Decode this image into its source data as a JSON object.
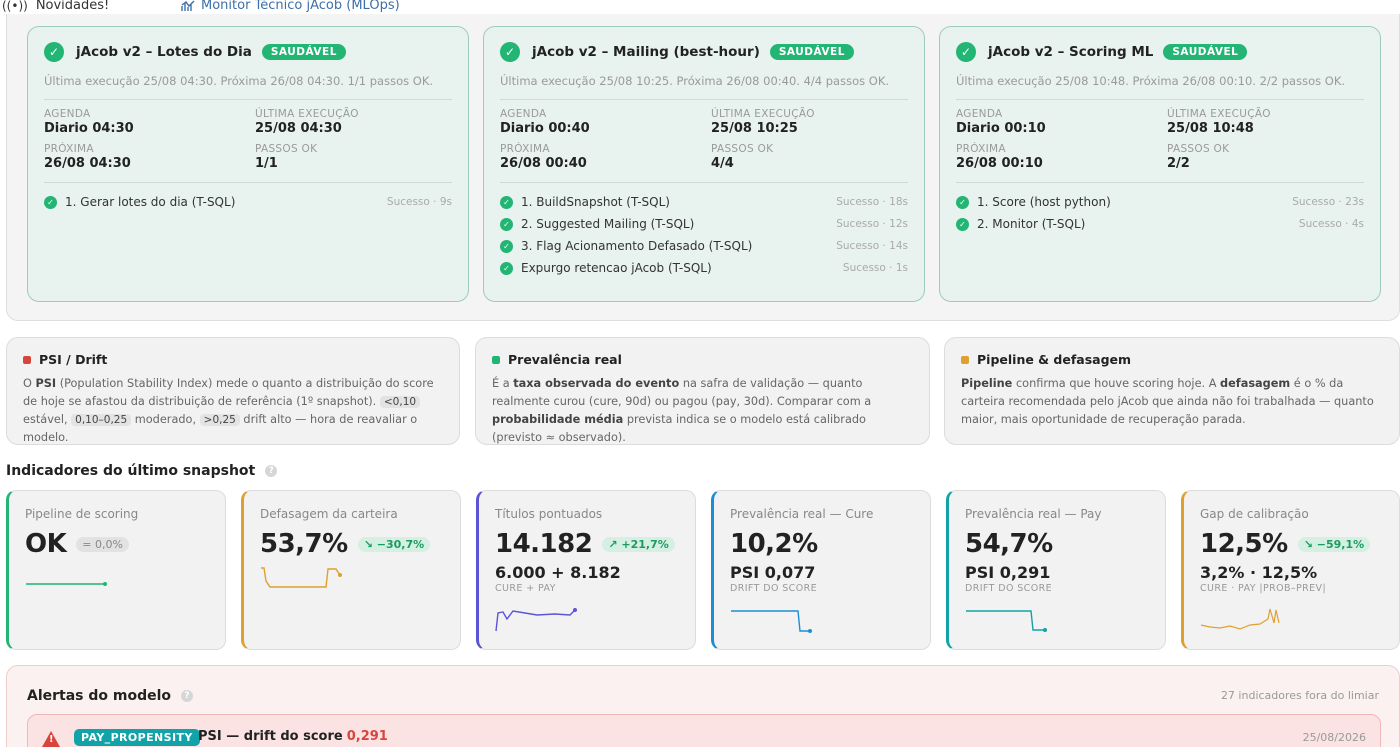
{
  "topbar": {
    "news_label": "Novidades!",
    "monitor_label": "Monitor Técnico jAcob (MLOps)"
  },
  "pipelines": [
    {
      "title": "jAcob v2 – Lotes do Dia",
      "status": "SAUDÁVEL",
      "summary": "Última execução 25/08 04:30. Próxima 26/08 04:30. 1/1 passos OK.",
      "fields": [
        {
          "label": "AGENDA",
          "value": "Diario 04:30"
        },
        {
          "label": "ÚLTIMA EXECUÇÃO",
          "value": "25/08 04:30"
        },
        {
          "label": "PRÓXIMA",
          "value": "26/08 04:30"
        },
        {
          "label": "PASSOS OK",
          "value": "1/1"
        }
      ],
      "steps": [
        {
          "name": "1. Gerar lotes do dia (T-SQL)",
          "status": "Sucesso · 9s"
        }
      ]
    },
    {
      "title": "jAcob v2 – Mailing (best-hour)",
      "status": "SAUDÁVEL",
      "summary": "Última execução 25/08 10:25. Próxima 26/08 00:40. 4/4 passos OK.",
      "fields": [
        {
          "label": "AGENDA",
          "value": "Diario 00:40"
        },
        {
          "label": "ÚLTIMA EXECUÇÃO",
          "value": "25/08 10:25"
        },
        {
          "label": "PRÓXIMA",
          "value": "26/08 00:40"
        },
        {
          "label": "PASSOS OK",
          "value": "4/4"
        }
      ],
      "steps": [
        {
          "name": "1. BuildSnapshot (T-SQL)",
          "status": "Sucesso · 18s"
        },
        {
          "name": "2. Suggested Mailing (T-SQL)",
          "status": "Sucesso · 12s"
        },
        {
          "name": "3. Flag Acionamento Defasado (T-SQL)",
          "status": "Sucesso · 14s"
        },
        {
          "name": "Expurgo retencao jAcob (T-SQL)",
          "status": "Sucesso · 1s"
        }
      ]
    },
    {
      "title": "jAcob v2 – Scoring ML",
      "status": "SAUDÁVEL",
      "summary": "Última execução 25/08 10:48. Próxima 26/08 00:10. 2/2 passos OK.",
      "fields": [
        {
          "label": "AGENDA",
          "value": "Diario 00:10"
        },
        {
          "label": "ÚLTIMA EXECUÇÃO",
          "value": "25/08 10:48"
        },
        {
          "label": "PRÓXIMA",
          "value": "26/08 00:10"
        },
        {
          "label": "PASSOS OK",
          "value": "2/2"
        }
      ],
      "steps": [
        {
          "name": "1. Score (host python)",
          "status": "Sucesso · 23s"
        },
        {
          "name": "2. Monitor (T-SQL)",
          "status": "Sucesso · 4s"
        }
      ]
    }
  ],
  "info_cards": {
    "psi": {
      "title": "PSI / Drift",
      "color": "#d9453c",
      "t1": "O ",
      "b1": "PSI",
      "t2": " (Population Stability Index) mede o quanto a distribuição do score de hoje se afastou da distribuição de referência (1º snapshot). ",
      "chip1": "<0,10",
      "t3": " estável, ",
      "chip2": "0,10–0,25",
      "t4": " moderado, ",
      "chip3": ">0,25",
      "t5": " drift alto — hora de reavaliar o modelo."
    },
    "prevalence": {
      "title": "Prevalência real",
      "color": "#22b573",
      "t1": "É a ",
      "b1": "taxa observada do evento",
      "t2": " na safra de validação — quanto realmente curou (cure, 90d) ou pagou (pay, 30d). Comparar com a ",
      "b2": "probabilidade média",
      "t3": " prevista indica se o modelo está calibrado (previsto ≈ observado)."
    },
    "pipeline": {
      "title": "Pipeline & defasagem",
      "color": "#e0a030",
      "b1": "Pipeline",
      "t1": " confirma que houve scoring hoje. A ",
      "b2": "defasagem",
      "t2": " é o % da carteira recomendada pelo jAcob que ainda não foi trabalhada — quanto maior, mais oportunidade de recuperação parada."
    }
  },
  "indicators": {
    "title": "Indicadores do último snapshot",
    "cards": [
      {
        "label": "Pipeline de scoring",
        "value": "OK",
        "delta": "= 0,0%",
        "secondary": "",
        "secondary_label": "",
        "color": "#22b573"
      },
      {
        "label": "Defasagem da carteira",
        "value": "53,7%",
        "delta": "↘ −30,7%",
        "secondary": "",
        "secondary_label": "",
        "color": "#e0a030"
      },
      {
        "label": "Títulos pontuados",
        "value": "14.182",
        "delta": "↗ +21,7%",
        "secondary": "6.000 + 8.182",
        "secondary_label": "CURE + PAY",
        "color": "#5b54d6"
      },
      {
        "label": "Prevalência real — Cure",
        "value": "10,2%",
        "delta": "",
        "secondary": "PSI 0,077",
        "secondary_label": "DRIFT DO SCORE",
        "color": "#1a8fd6"
      },
      {
        "label": "Prevalência real — Pay",
        "value": "54,7%",
        "delta": "",
        "secondary": "PSI 0,291",
        "secondary_label": "DRIFT DO SCORE",
        "color": "#12a3a8"
      },
      {
        "label": "Gap de calibração",
        "value": "12,5%",
        "delta": "↘ −59,1%",
        "secondary": "3,2% · 12,5%",
        "secondary_label": "CURE · PAY |PROB–PREV|",
        "color": "#e0a030"
      }
    ]
  },
  "alerts": {
    "title": "Alertas do modelo",
    "count_text": "27 indicadores fora do limiar",
    "items": [
      {
        "tag": "PAY_PROPENSITY",
        "text": "PSI — drift do score",
        "value": "0,291",
        "date": "25/08/2026"
      }
    ]
  }
}
